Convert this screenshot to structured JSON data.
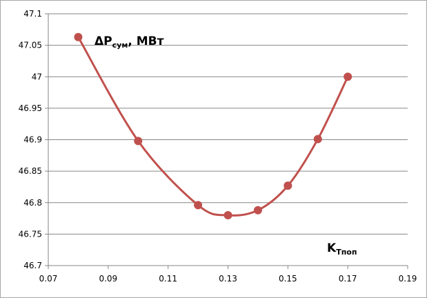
{
  "chart_data": {
    "type": "line",
    "title": "",
    "xlabel": "",
    "ylabel": "",
    "xlim": [
      0.07,
      0.19
    ],
    "ylim": [
      46.7,
      47.1
    ],
    "x_ticks": [
      "0.07",
      "0.09",
      "0.11",
      "0.13",
      "0.15",
      "0.17",
      "0.19"
    ],
    "y_ticks": [
      "47.1",
      "47.05",
      "47",
      "46.95",
      "46.9",
      "46.85",
      "46.8",
      "46.75",
      "46.7"
    ],
    "grid": "horizontal",
    "smooth": true,
    "series": [
      {
        "color": "#c0504d",
        "points": [
          {
            "x": 0.08,
            "y": 47.063
          },
          {
            "x": 0.1,
            "y": 46.898
          },
          {
            "x": 0.12,
            "y": 46.796
          },
          {
            "x": 0.13,
            "y": 46.78
          },
          {
            "x": 0.14,
            "y": 46.788
          },
          {
            "x": 0.15,
            "y": 46.827
          },
          {
            "x": 0.16,
            "y": 46.901
          },
          {
            "x": 0.17,
            "y": 47.0
          }
        ]
      }
    ],
    "annotations": {
      "y_quantity": {
        "main": "ΔP",
        "sub": "сум",
        "tail": ", МВт"
      },
      "x_quantity": {
        "main": "K",
        "sub": "Tпоп"
      }
    }
  },
  "colors": {
    "series": "#c0504d",
    "grid": "#868686",
    "axis": "#868686",
    "border": "#a6a6a6"
  }
}
